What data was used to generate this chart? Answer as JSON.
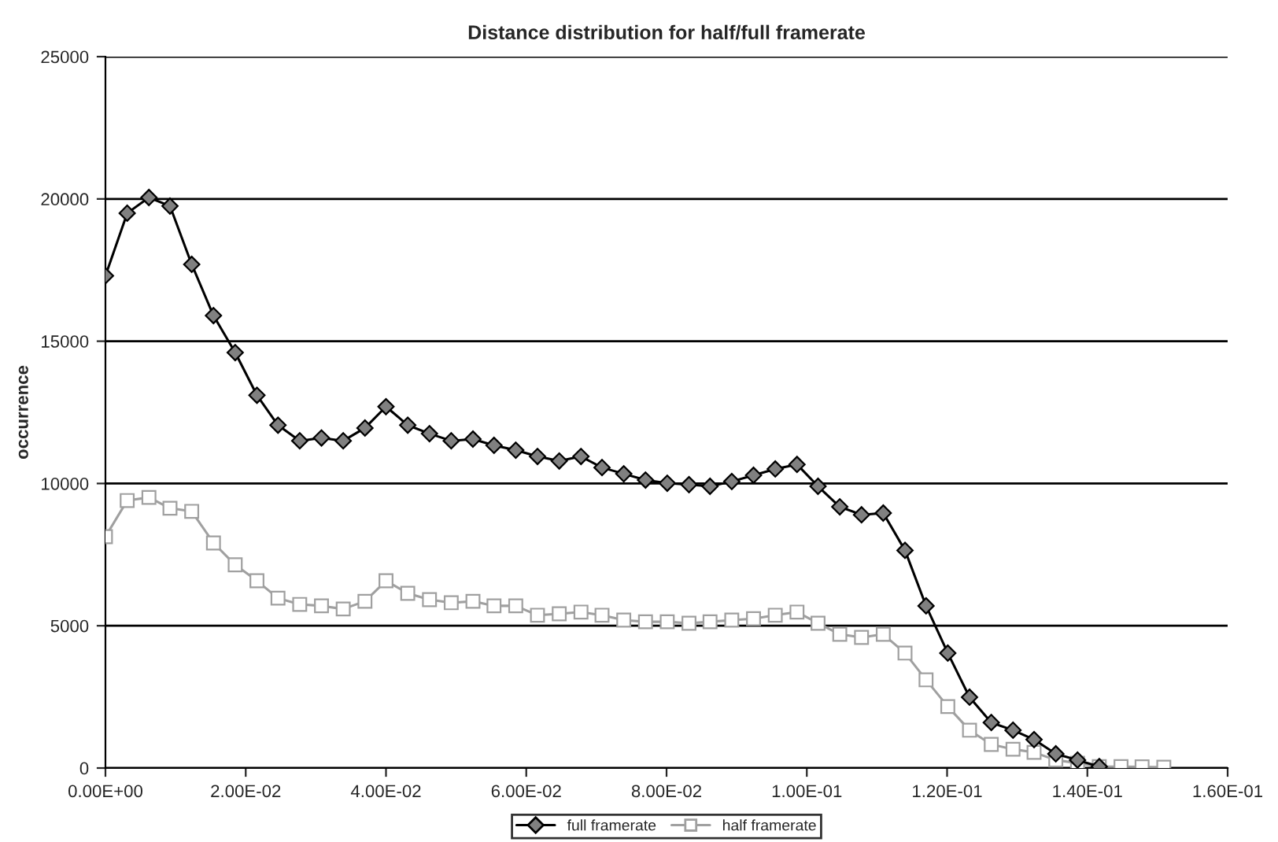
{
  "chart_data": {
    "type": "line",
    "title": "Distance distribution for half/full framerate",
    "ylabel": "occurrence",
    "xlim": [
      0,
      0.16
    ],
    "xticks": [
      {
        "value": 0,
        "label": "0.00E+00"
      },
      {
        "value": 0.02,
        "label": "2.00E-02"
      },
      {
        "value": 0.04,
        "label": "4.00E-02"
      },
      {
        "value": 0.06,
        "label": "6.00E-02"
      },
      {
        "value": 0.08,
        "label": "8.00E-02"
      },
      {
        "value": 0.1,
        "label": "1.00E-01"
      },
      {
        "value": 0.12,
        "label": "1.20E-01"
      },
      {
        "value": 0.14,
        "label": "1.40E-01"
      },
      {
        "value": 0.16,
        "label": "1.60E-01"
      }
    ],
    "ylim": [
      0,
      25000
    ],
    "yticks": [
      0,
      5000,
      10000,
      15000,
      20000,
      25000
    ],
    "grid": "y",
    "legend": "bottom",
    "series": [
      {
        "name": "full framerate",
        "color": "#000000",
        "marker": "diamond",
        "x": [
          0,
          0.0031,
          0.0062,
          0.0092,
          0.0123,
          0.0154,
          0.0185,
          0.0216,
          0.0246,
          0.0277,
          0.0308,
          0.0339,
          0.037,
          0.04,
          0.0431,
          0.0462,
          0.0493,
          0.0524,
          0.0554,
          0.0585,
          0.0616,
          0.0647,
          0.0678,
          0.0708,
          0.0739,
          0.077,
          0.0801,
          0.0832,
          0.0862,
          0.0893,
          0.0924,
          0.0955,
          0.0986,
          0.1016,
          0.1047,
          0.1078,
          0.1109,
          0.114,
          0.117,
          0.1201,
          0.1232,
          0.1263,
          0.1294,
          0.1324,
          0.1355,
          0.1386,
          0.1417
        ],
        "values": [
          17300,
          19500,
          20050,
          19750,
          17700,
          15900,
          14600,
          13100,
          12050,
          11500,
          11600,
          11500,
          11950,
          12700,
          12050,
          11750,
          11500,
          11560,
          11340,
          11170,
          10950,
          10790,
          10950,
          10560,
          10340,
          10120,
          10010,
          9960,
          9900,
          10070,
          10290,
          10510,
          10670,
          9900,
          9180,
          8900,
          8960,
          7650,
          5700,
          4040,
          2490,
          1600,
          1330,
          1000,
          500,
          280,
          50
        ]
      },
      {
        "name": "half framerate",
        "color": "#a0a0a0",
        "marker": "square",
        "x": [
          0,
          0.0031,
          0.0062,
          0.0092,
          0.0123,
          0.0154,
          0.0185,
          0.0216,
          0.0246,
          0.0277,
          0.0308,
          0.0339,
          0.037,
          0.04,
          0.0431,
          0.0462,
          0.0493,
          0.0524,
          0.0554,
          0.0585,
          0.0616,
          0.0647,
          0.0678,
          0.0708,
          0.0739,
          0.077,
          0.0801,
          0.0832,
          0.0862,
          0.0893,
          0.0924,
          0.0955,
          0.0986,
          0.1016,
          0.1047,
          0.1078,
          0.1109,
          0.114,
          0.117,
          0.1201,
          0.1232,
          0.1263,
          0.1294,
          0.1324,
          0.1355,
          0.1386,
          0.1417,
          0.1448,
          0.1478,
          0.1509
        ],
        "values": [
          8130,
          9400,
          9510,
          9130,
          9020,
          7910,
          7140,
          6580,
          5970,
          5750,
          5700,
          5590,
          5860,
          6580,
          6140,
          5920,
          5810,
          5860,
          5700,
          5700,
          5370,
          5420,
          5480,
          5370,
          5200,
          5140,
          5140,
          5090,
          5140,
          5200,
          5250,
          5370,
          5480,
          5090,
          4700,
          4590,
          4700,
          4040,
          3100,
          2160,
          1330,
          830,
          660,
          550,
          280,
          170,
          50,
          50,
          40,
          30
        ]
      }
    ]
  }
}
